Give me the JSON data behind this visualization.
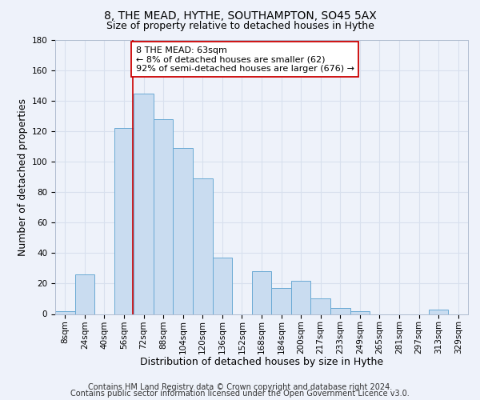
{
  "title": "8, THE MEAD, HYTHE, SOUTHAMPTON, SO45 5AX",
  "subtitle": "Size of property relative to detached houses in Hythe",
  "xlabel": "Distribution of detached houses by size in Hythe",
  "ylabel": "Number of detached properties",
  "bin_labels": [
    "8sqm",
    "24sqm",
    "40sqm",
    "56sqm",
    "72sqm",
    "88sqm",
    "104sqm",
    "120sqm",
    "136sqm",
    "152sqm",
    "168sqm",
    "184sqm",
    "200sqm",
    "217sqm",
    "233sqm",
    "249sqm",
    "265sqm",
    "281sqm",
    "297sqm",
    "313sqm",
    "329sqm"
  ],
  "bar_values": [
    2,
    26,
    0,
    122,
    145,
    128,
    109,
    89,
    37,
    0,
    28,
    17,
    22,
    10,
    4,
    2,
    0,
    0,
    0,
    3,
    0
  ],
  "bin_width": 16,
  "n_bins": 21,
  "bar_color": "#c9dcf0",
  "bar_edgecolor": "#6aaad4",
  "vline_x_bin": 3.4,
  "vline_color": "#cc0000",
  "ylim": [
    0,
    180
  ],
  "yticks": [
    0,
    20,
    40,
    60,
    80,
    100,
    120,
    140,
    160,
    180
  ],
  "annotation_text": "8 THE MEAD: 63sqm\n← 8% of detached houses are smaller (62)\n92% of semi-detached houses are larger (676) →",
  "annotation_box_edgecolor": "#cc0000",
  "annotation_box_facecolor": "#ffffff",
  "footer_line1": "Contains HM Land Registry data © Crown copyright and database right 2024.",
  "footer_line2": "Contains public sector information licensed under the Open Government Licence v3.0.",
  "background_color": "#eef2fa",
  "grid_color": "#d8e0ee",
  "title_fontsize": 10,
  "subtitle_fontsize": 9,
  "axis_label_fontsize": 9,
  "tick_fontsize": 7.5,
  "annotation_fontsize": 8,
  "footer_fontsize": 7
}
